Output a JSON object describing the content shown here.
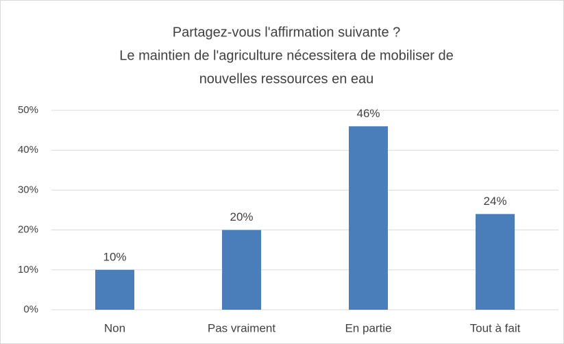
{
  "chart_data": {
    "type": "bar",
    "title": [
      "Partagez-vous l'affirmation suivante ?",
      "Le maintien de l'agriculture nécessitera de mobiliser de",
      "nouvelles ressources en eau"
    ],
    "categories": [
      "Non",
      "Pas vraiment",
      "En partie",
      "Tout à fait"
    ],
    "values": [
      10,
      20,
      46,
      24
    ],
    "value_labels": [
      "10%",
      "20%",
      "46%",
      "24%"
    ],
    "color": "#4a7ebb",
    "ylim": [
      0,
      50
    ],
    "yticks": [
      {
        "value": 0,
        "label": "0%"
      },
      {
        "value": 10,
        "label": "10%"
      },
      {
        "value": 20,
        "label": "20%"
      },
      {
        "value": 30,
        "label": "30%"
      },
      {
        "value": 40,
        "label": "40%"
      },
      {
        "value": 50,
        "label": "50%"
      }
    ],
    "grid": true
  }
}
